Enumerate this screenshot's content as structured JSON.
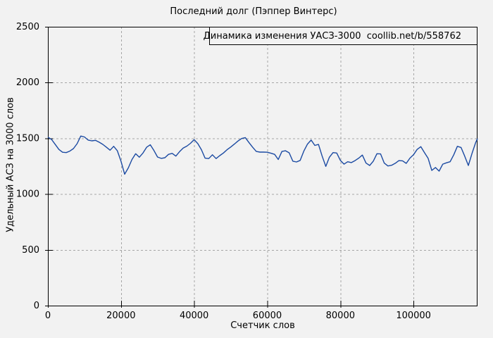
{
  "colors": {
    "background": "#f2f2f2",
    "line": "#1b4aa2",
    "grid": "#a6a6a6",
    "axis": "#000000"
  },
  "chart_data": {
    "type": "line",
    "title": "Последний долг (Пэппер Винтерс)",
    "xlabel": "Счетчик слов",
    "ylabel": "Удельный АСЗ на 3000 слов",
    "xlim": [
      0,
      117500
    ],
    "ylim": [
      0,
      2500
    ],
    "xticks": [
      0,
      20000,
      40000,
      60000,
      80000,
      100000
    ],
    "yticks": [
      0,
      500,
      1000,
      1500,
      2000,
      2500
    ],
    "grid": true,
    "legend_position": "top-right-inside-box",
    "series": [
      {
        "name": "Динамика изменения УАСЗ-3000  coollib.net/b/558762",
        "color": "#1b4aa2",
        "x": [
          0,
          1000,
          2000,
          3000,
          4000,
          5000,
          6000,
          7000,
          8000,
          9000,
          10000,
          11000,
          12000,
          13000,
          14000,
          15000,
          16000,
          17000,
          18000,
          19000,
          20000,
          21000,
          22000,
          23000,
          24000,
          25000,
          26000,
          27000,
          28000,
          29000,
          30000,
          31000,
          32000,
          33000,
          34000,
          35000,
          36000,
          37000,
          38000,
          39000,
          40000,
          41000,
          42000,
          43000,
          44000,
          45000,
          46000,
          47000,
          48000,
          49000,
          50000,
          51000,
          52000,
          53000,
          54000,
          55000,
          56000,
          57000,
          58000,
          59000,
          60000,
          61000,
          62000,
          63000,
          64000,
          65000,
          66000,
          67000,
          68000,
          69000,
          70000,
          71000,
          72000,
          73000,
          74000,
          75000,
          76000,
          77000,
          78000,
          79000,
          80000,
          81000,
          82000,
          83000,
          84000,
          85000,
          86000,
          87000,
          88000,
          89000,
          90000,
          91000,
          92000,
          93000,
          94000,
          95000,
          96000,
          97000,
          98000,
          99000,
          100000,
          101000,
          102000,
          103000,
          104000,
          105000,
          106000,
          107000,
          108000,
          109000,
          110000,
          111000,
          112000,
          113000,
          114000,
          115000,
          116000,
          117000,
          117500
        ],
        "y": [
          1510,
          1490,
          1445,
          1400,
          1375,
          1372,
          1385,
          1408,
          1452,
          1520,
          1512,
          1484,
          1477,
          1482,
          1465,
          1446,
          1420,
          1393,
          1428,
          1388,
          1295,
          1178,
          1235,
          1310,
          1362,
          1330,
          1368,
          1420,
          1442,
          1390,
          1332,
          1320,
          1326,
          1356,
          1365,
          1340,
          1380,
          1412,
          1430,
          1455,
          1488,
          1452,
          1398,
          1322,
          1318,
          1352,
          1318,
          1345,
          1368,
          1398,
          1422,
          1448,
          1476,
          1498,
          1506,
          1462,
          1420,
          1382,
          1376,
          1376,
          1375,
          1366,
          1356,
          1310,
          1382,
          1388,
          1370,
          1295,
          1288,
          1302,
          1385,
          1448,
          1484,
          1436,
          1445,
          1340,
          1248,
          1330,
          1372,
          1368,
          1302,
          1268,
          1290,
          1282,
          1300,
          1322,
          1350,
          1278,
          1256,
          1295,
          1362,
          1360,
          1278,
          1252,
          1258,
          1276,
          1300,
          1298,
          1275,
          1322,
          1352,
          1400,
          1425,
          1372,
          1320,
          1212,
          1238,
          1206,
          1268,
          1280,
          1290,
          1352,
          1428,
          1418,
          1340,
          1256,
          1364,
          1462,
          1498
        ]
      }
    ]
  }
}
